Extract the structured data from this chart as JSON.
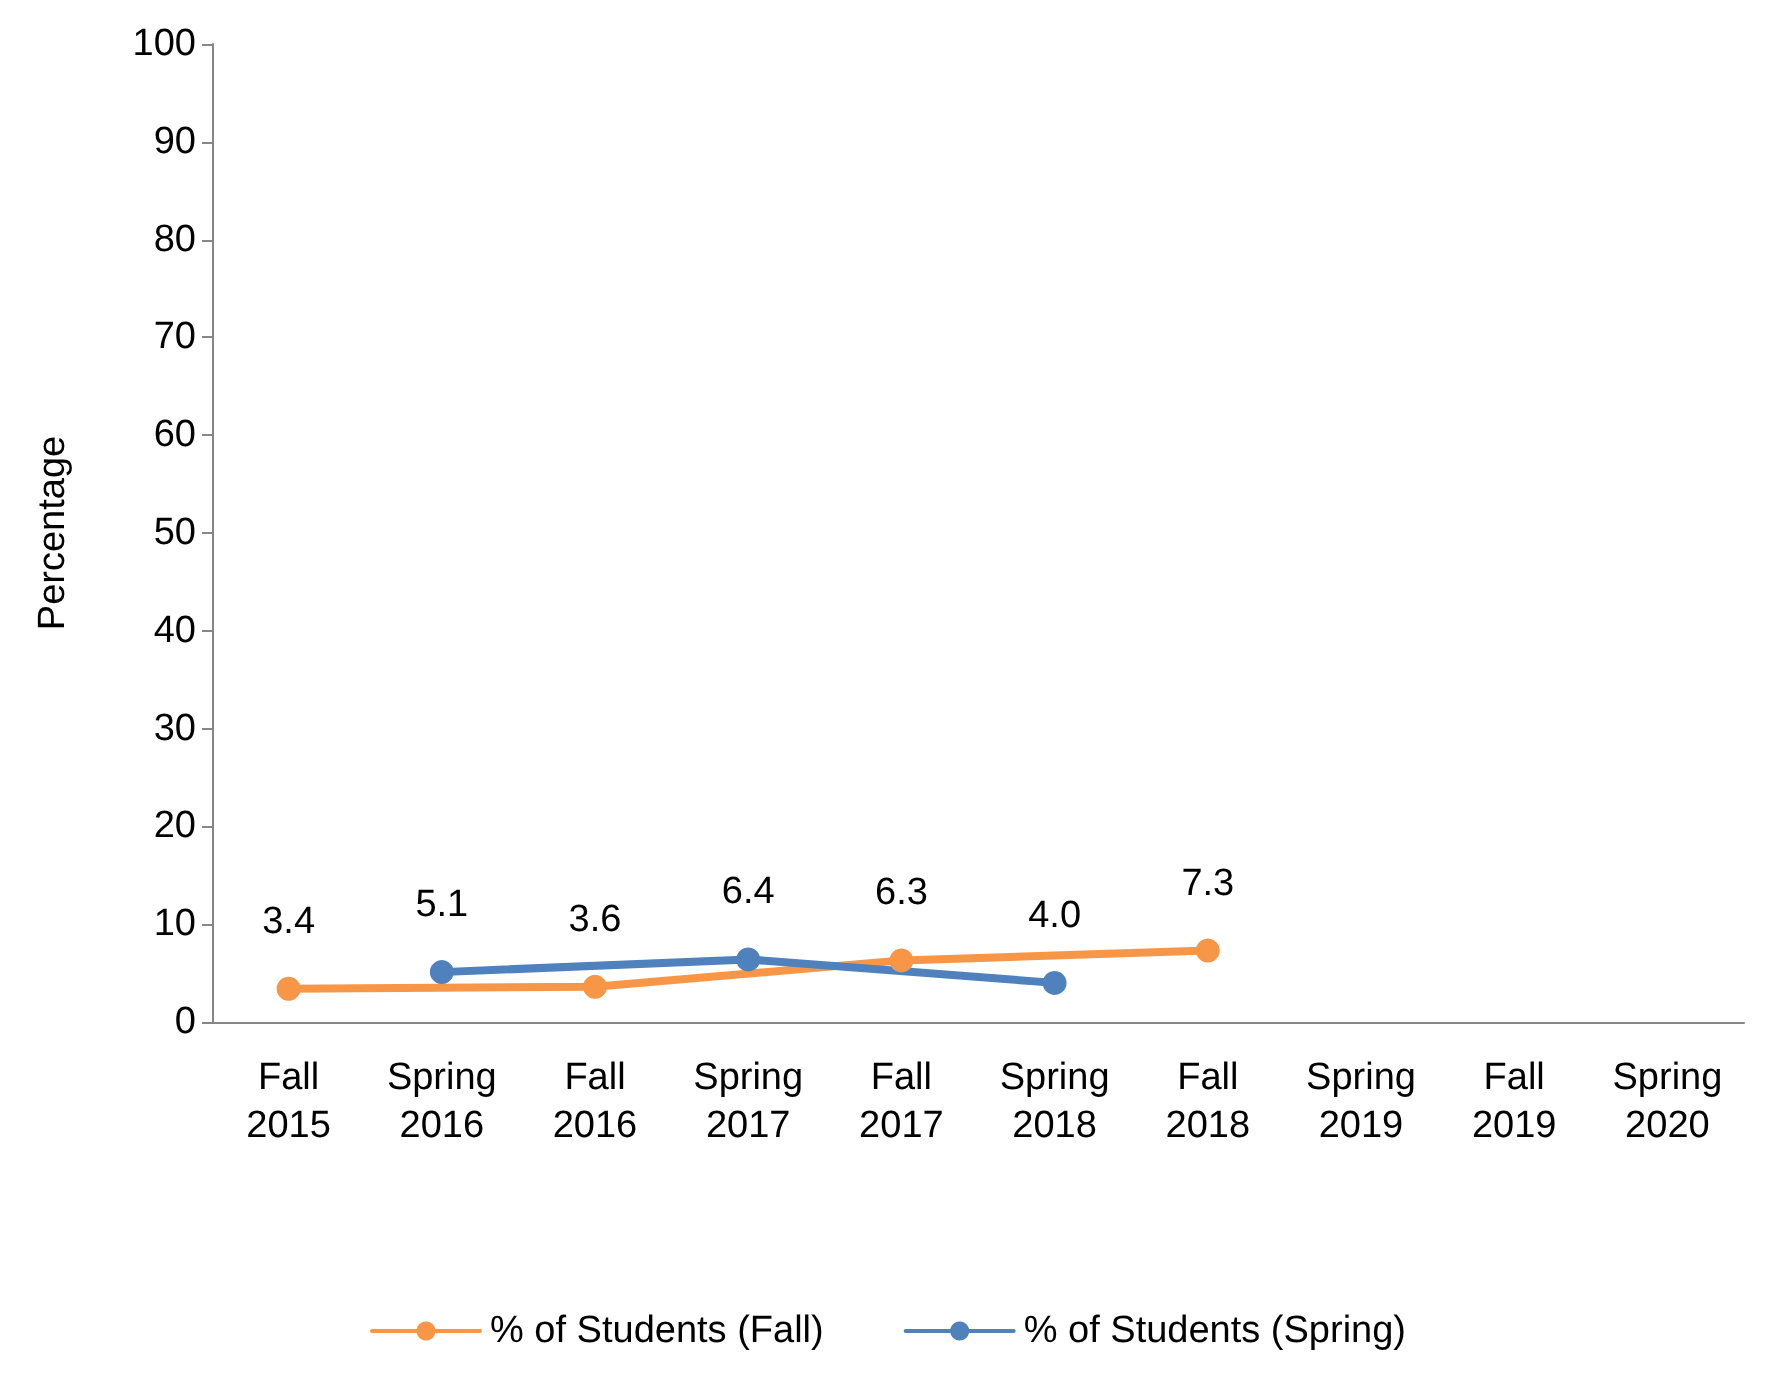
{
  "chart_data": {
    "type": "line",
    "ylabel": "Percentage",
    "categories": [
      "Fall\n2015",
      "Spring\n2016",
      "Fall\n2016",
      "Spring\n2017",
      "Fall\n2017",
      "Spring\n2018",
      "Fall\n2018",
      "Spring\n2019",
      "Fall\n2019",
      "Spring\n2020"
    ],
    "series": [
      {
        "name": "% of Students (Fall)",
        "color": "#f79646",
        "values": [
          3.4,
          null,
          3.6,
          null,
          6.3,
          null,
          7.3,
          null,
          null,
          null
        ],
        "value_labels": [
          "3.4",
          null,
          "3.6",
          null,
          "6.3",
          null,
          "7.3",
          null,
          null,
          null
        ]
      },
      {
        "name": "% of Students (Spring)",
        "color": "#4f81bd",
        "values": [
          null,
          5.1,
          null,
          6.4,
          null,
          4.0,
          null,
          null,
          null,
          null
        ],
        "value_labels": [
          null,
          "5.1",
          null,
          "6.4",
          null,
          "4.0",
          null,
          null,
          null,
          null
        ]
      }
    ],
    "ylim": [
      0,
      100
    ],
    "yticks": [
      0,
      10,
      20,
      30,
      40,
      50,
      60,
      70,
      80,
      90,
      100
    ],
    "grid": false,
    "legend": "bottom",
    "marker": "circle",
    "line_style": "solid"
  }
}
